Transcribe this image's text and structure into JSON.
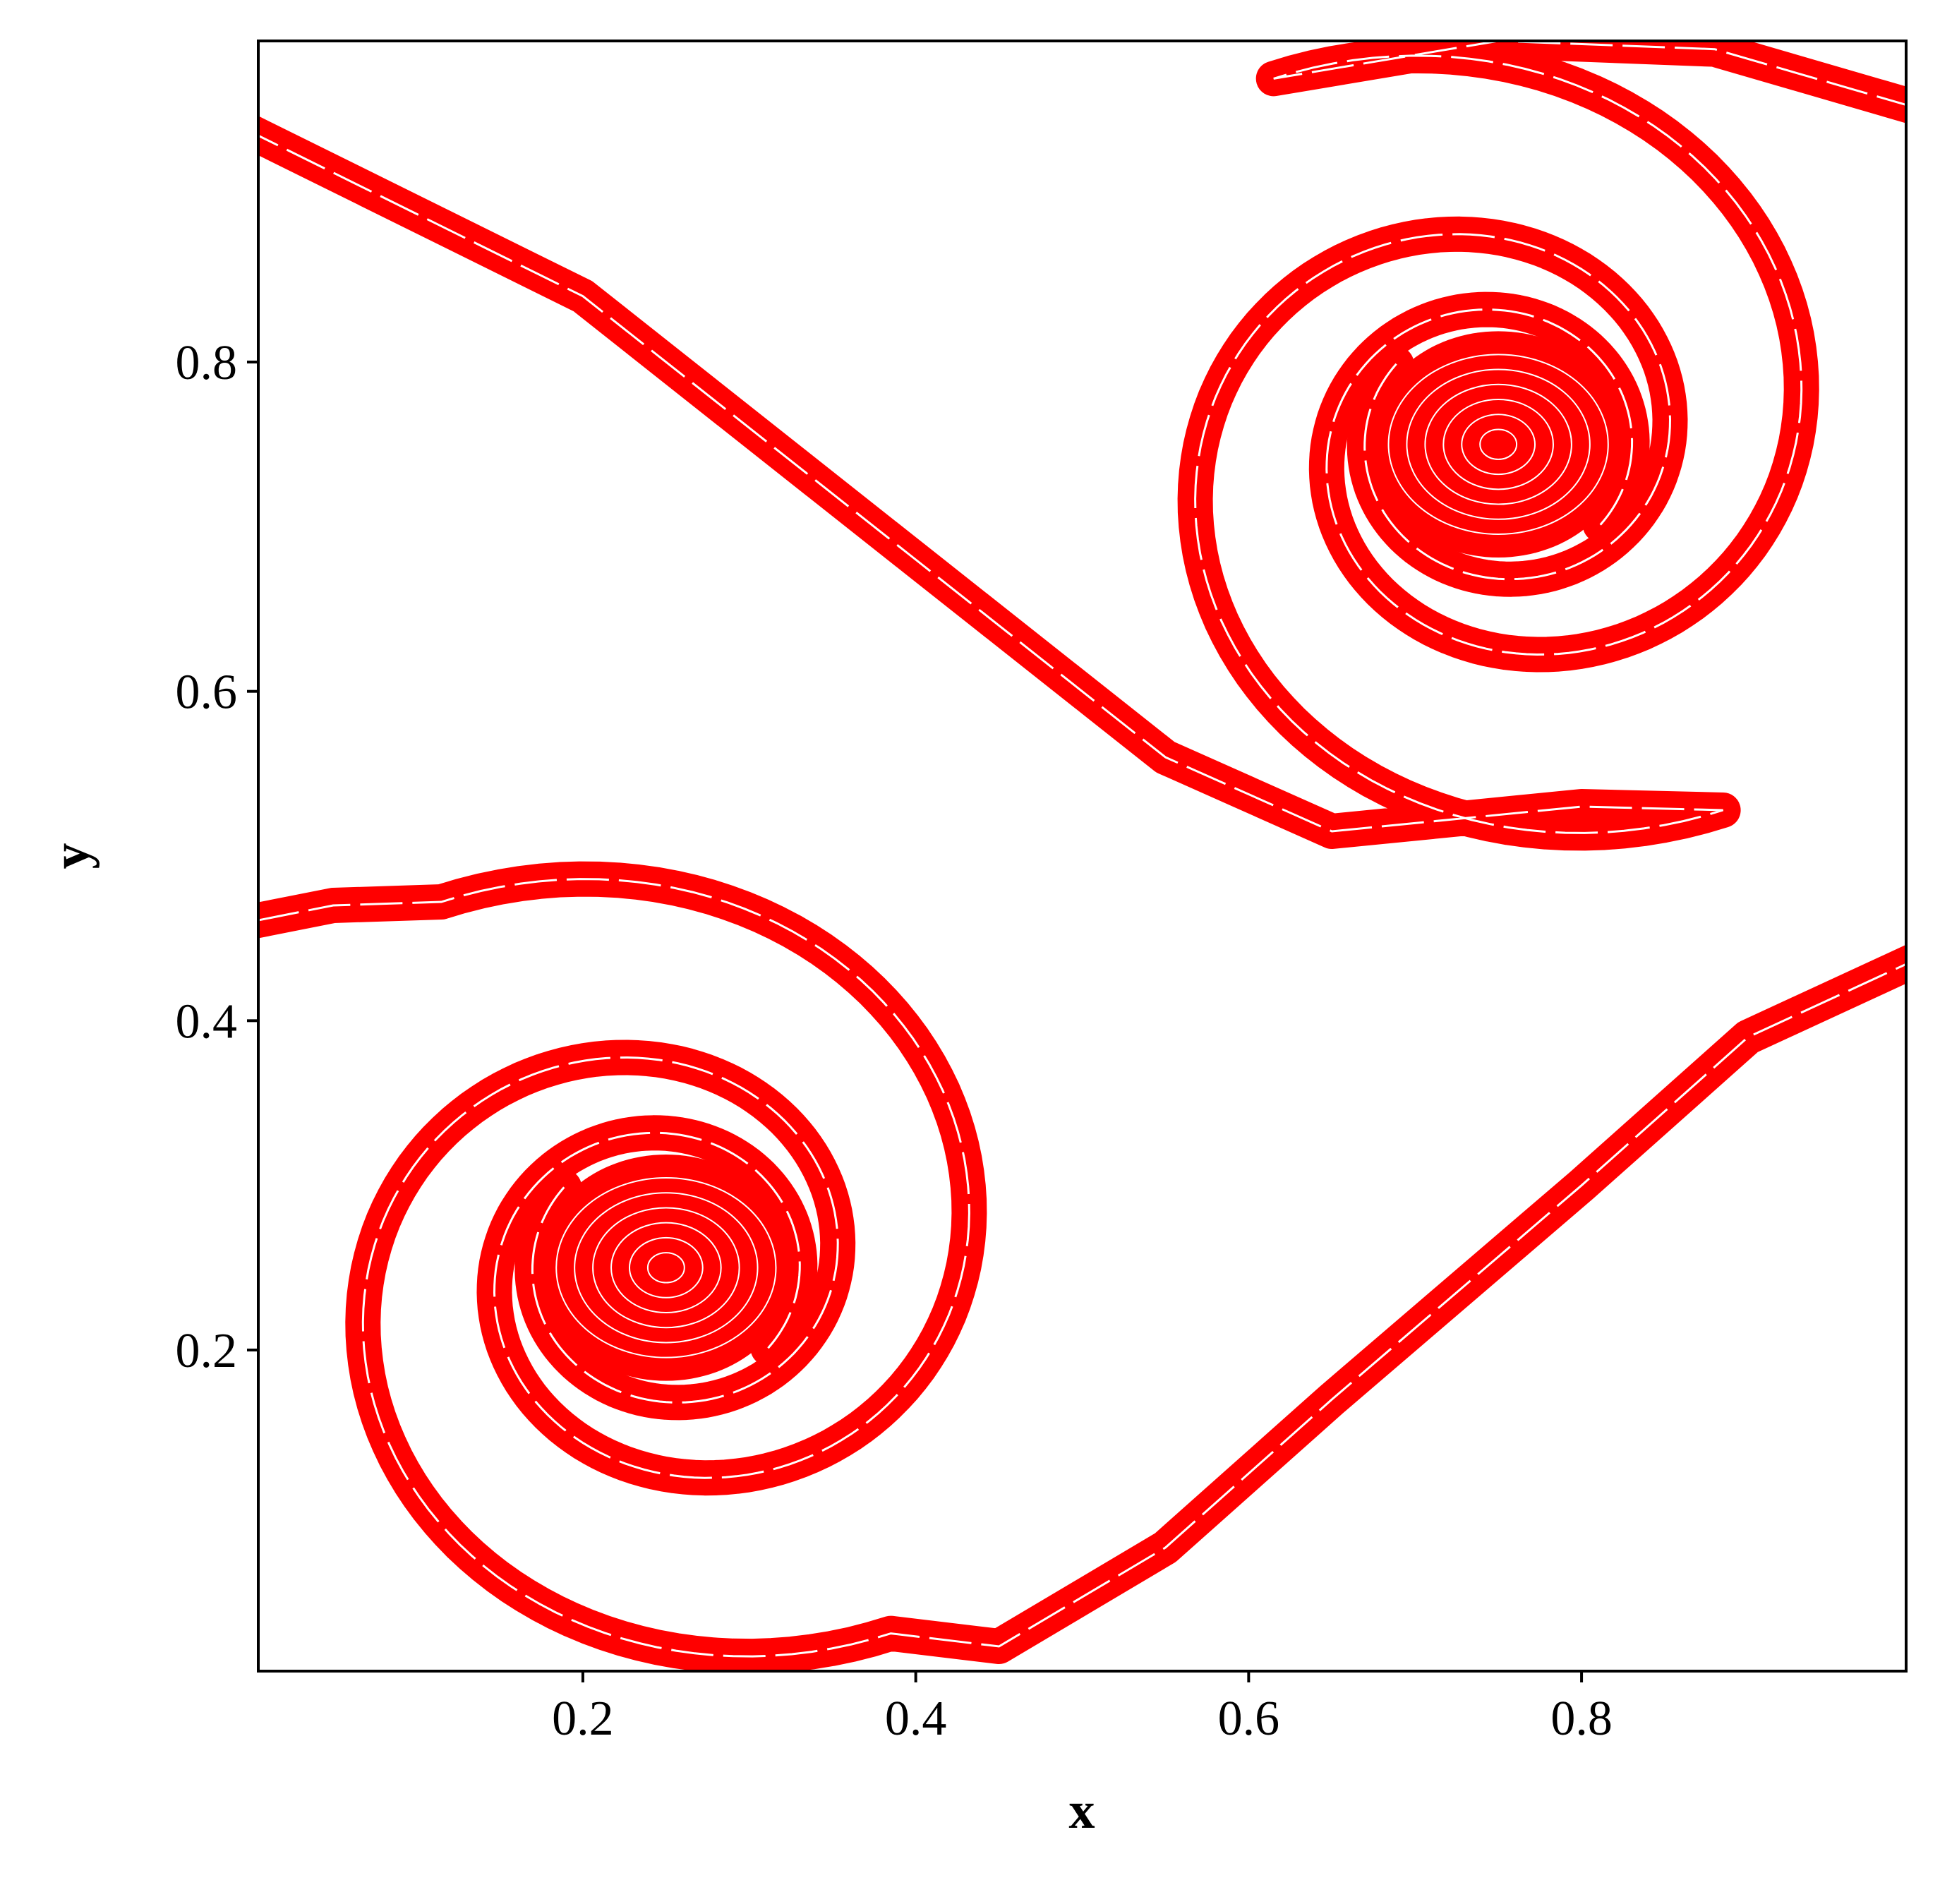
{
  "chart_data": {
    "type": "contour",
    "xlabel": "x",
    "ylabel": "y",
    "color": "#ff0000",
    "xlim": [
      0.005,
      0.995
    ],
    "ylim": [
      0.005,
      0.995
    ],
    "xticks": [
      0.2,
      0.4,
      0.6,
      0.8
    ],
    "yticks": [
      0.2,
      0.4,
      0.6,
      0.8
    ]
  }
}
